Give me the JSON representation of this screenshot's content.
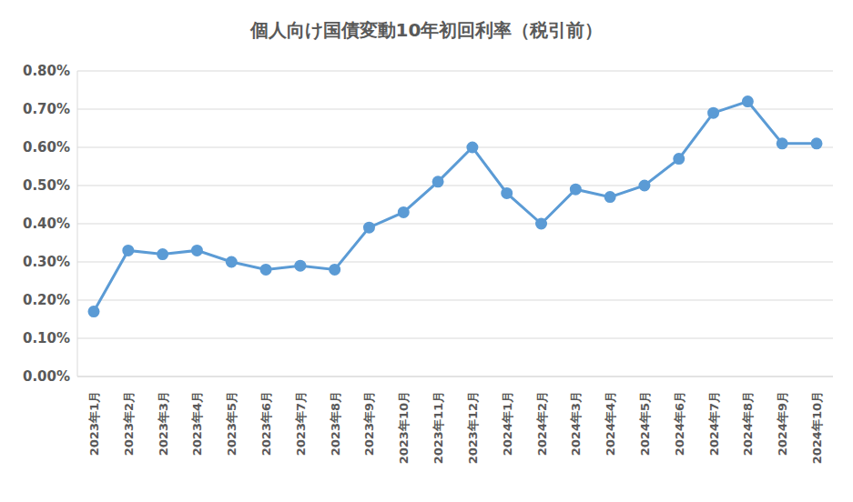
{
  "chart_data": {
    "type": "line",
    "title": "個人向け国債変動10年初回利率（税引前）",
    "categories": [
      "2023年1月",
      "2023年2月",
      "2023年3月",
      "2023年4月",
      "2023年5月",
      "2023年6月",
      "2023年7月",
      "2023年8月",
      "2023年9月",
      "2023年10月",
      "2023年11月",
      "2023年12月",
      "2024年1月",
      "2024年2月",
      "2024年3月",
      "2024年4月",
      "2024年5月",
      "2024年6月",
      "2024年7月",
      "2024年8月",
      "2024年9月",
      "2024年10月"
    ],
    "values": [
      0.17,
      0.33,
      0.32,
      0.33,
      0.3,
      0.28,
      0.29,
      0.28,
      0.39,
      0.43,
      0.51,
      0.6,
      0.48,
      0.4,
      0.49,
      0.47,
      0.5,
      0.57,
      0.69,
      0.72,
      0.61,
      0.61
    ],
    "color": "#5b9bd5",
    "marker": "circle",
    "ylim": [
      0,
      0.8
    ],
    "yticks": [
      {
        "value": 0,
        "label": "0.00%"
      },
      {
        "value": 0.1,
        "label": "0.10%"
      },
      {
        "value": 0.2,
        "label": "0.20%"
      },
      {
        "value": 0.3,
        "label": "0.30%"
      },
      {
        "value": 0.4,
        "label": "0.40%"
      },
      {
        "value": 0.5,
        "label": "0.50%"
      },
      {
        "value": 0.6,
        "label": "0.60%"
      },
      {
        "value": 0.7,
        "label": "0.70%"
      },
      {
        "value": 0.8,
        "label": "0.80%"
      }
    ],
    "grid": true
  }
}
